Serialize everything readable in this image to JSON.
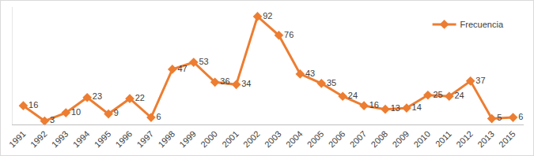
{
  "chart_data": {
    "type": "line",
    "categories": [
      "1991",
      "1992",
      "1993",
      "1994",
      "1995",
      "1996",
      "1997",
      "1998",
      "1999",
      "2000",
      "2001",
      "2002",
      "2003",
      "2004",
      "2005",
      "2006",
      "2007",
      "2008",
      "2009",
      "2010",
      "2011",
      "2012",
      "2013",
      "2015"
    ],
    "series": [
      {
        "name": "Frecuencia",
        "color": "#ed7d31",
        "values": [
          16,
          3,
          10,
          23,
          9,
          22,
          6,
          47,
          53,
          36,
          34,
          92,
          76,
          43,
          35,
          24,
          16,
          13,
          14,
          25,
          24,
          37,
          5,
          6
        ]
      }
    ],
    "marker": "diamond",
    "ylim": [
      0,
      100
    ],
    "grid": false,
    "legend": "upper right",
    "data_labels": true,
    "tick_labels": "x"
  }
}
